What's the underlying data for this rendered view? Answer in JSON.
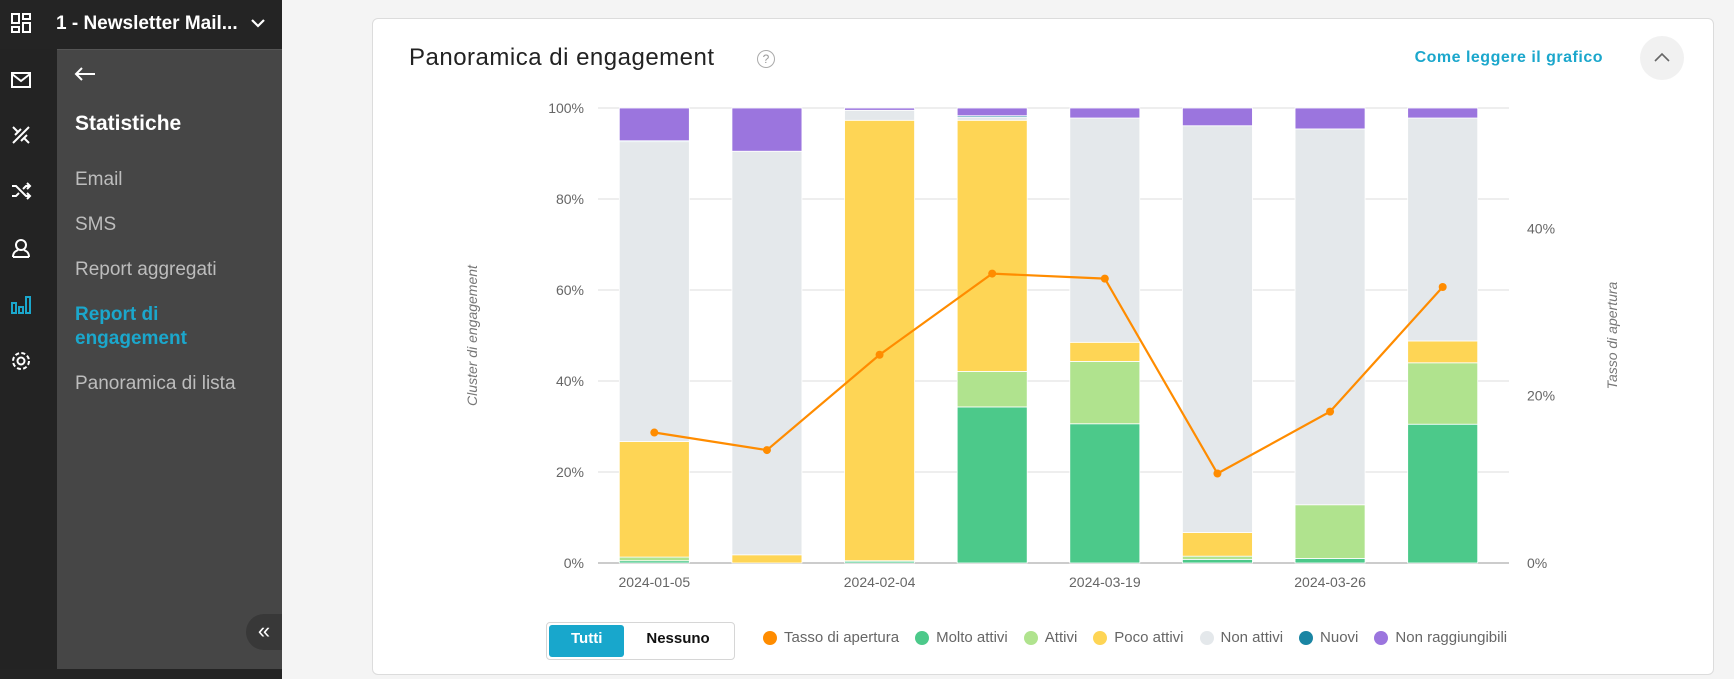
{
  "header": {
    "title": "1 - Newsletter Mail..."
  },
  "icon_rail": [
    "mail-icon",
    "tools-icon",
    "shuffle-icon",
    "user-icon",
    "bar-chart-icon",
    "gear-icon"
  ],
  "submenu": {
    "section_title": "Statistiche",
    "items": [
      {
        "label": "Email",
        "active": false
      },
      {
        "label": "SMS",
        "active": false
      },
      {
        "label": "Report aggregati",
        "active": false
      },
      {
        "label": "Report di engagement",
        "active": true
      },
      {
        "label": "Panoramica di lista",
        "active": false
      }
    ],
    "collapse_label": "«"
  },
  "card": {
    "title": "Panoramica di engagement",
    "help": "?",
    "how_to_read": "Come leggere il grafico"
  },
  "toggle": {
    "all": "Tutti",
    "none": "Nessuno"
  },
  "colors": {
    "accent": "#1ba7cc"
  },
  "chart_data": {
    "type": "bar",
    "stacked": true,
    "categories": [
      "2024-01-05",
      "",
      "2024-02-04",
      "",
      "2024-03-19",
      "",
      "2024-03-26",
      ""
    ],
    "ylabel": "Cluster di engagement",
    "ylabel_right": "Tasso di apertura",
    "ylim": [
      0,
      100
    ],
    "ylim_right": [
      0,
      54.4
    ],
    "yticks": [
      "0%",
      "20%",
      "40%",
      "60%",
      "80%",
      "100%"
    ],
    "yticks_right": [
      "0%",
      "20%",
      "40%"
    ],
    "grid": true,
    "legend_position": "bottom",
    "series": [
      {
        "name": "Molto attivi",
        "color": "#4cc98a",
        "values": [
          0.5,
          0,
          0.4,
          34.3,
          30.6,
          0.8,
          1.0,
          30.5
        ]
      },
      {
        "name": "Attivi",
        "color": "#b0e38e",
        "values": [
          0.8,
          0,
          0.1,
          7.8,
          13.7,
          0.7,
          11.8,
          13.5
        ]
      },
      {
        "name": "Poco attivi",
        "color": "#fed555",
        "values": [
          25.4,
          1.8,
          96.8,
          55.2,
          4.2,
          5.2,
          0,
          4.8
        ]
      },
      {
        "name": "Non attivi",
        "color": "#e4e8eb",
        "values": [
          65.9,
          88.7,
          2.2,
          0.7,
          49.3,
          89.4,
          82.6,
          49.0
        ]
      },
      {
        "name": "Nuovi",
        "color": "#1a85a3",
        "values": [
          0.2,
          0,
          0,
          0.3,
          0,
          0,
          0,
          0
        ]
      },
      {
        "name": "Non raggiungibili",
        "color": "#9b75de",
        "values": [
          7.2,
          9.5,
          0.5,
          1.7,
          2.2,
          3.9,
          4.6,
          2.2
        ]
      }
    ],
    "line_series": {
      "name": "Tasso di apertura",
      "color": "#ff8c00",
      "axis": "right",
      "values": [
        15.6,
        13.5,
        24.9,
        34.6,
        34.0,
        10.7,
        18.1,
        33.0
      ]
    },
    "legend_order": [
      "Tasso di apertura",
      "Molto attivi",
      "Attivi",
      "Poco attivi",
      "Non attivi",
      "Nuovi",
      "Non raggiungibili"
    ]
  }
}
